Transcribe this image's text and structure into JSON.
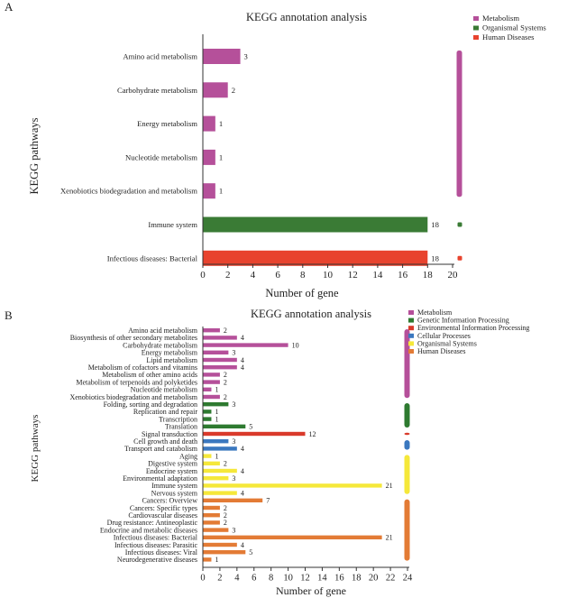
{
  "colors": {
    "metabolism": "#b5509a",
    "organismal": "#3a7b35",
    "human_diseases_a": "#e8432e",
    "genetic": "#2e7a30",
    "environmental": "#d93a2b",
    "cellular": "#3b78bf",
    "organismal_b": "#f5e83a",
    "human_diseases_b": "#e37b35",
    "axis": "#333333"
  },
  "chart_data": [
    {
      "panel_label": "A",
      "type": "bar",
      "orientation": "horizontal",
      "title": "KEGG annotation analysis",
      "xlabel": "Number of gene",
      "ylabel": "KEGG pathways",
      "xlim": [
        0,
        21
      ],
      "xticks": [
        "0",
        "2",
        "4",
        "6",
        "8",
        "10",
        "12",
        "14",
        "16",
        "18",
        "20"
      ],
      "legend_position": "top-right",
      "legend": [
        {
          "name": "Metabolism",
          "color": "#b5509a"
        },
        {
          "name": "Organismal Systems",
          "color": "#3a7b35"
        },
        {
          "name": "Human Diseases",
          "color": "#e8432e"
        }
      ],
      "categories": [
        "Amino acid metabolism",
        "Carbohydrate metabolism",
        "Energy metabolism",
        "Nucleotide metabolism",
        "Xenobiotics biodegradation and metabolism",
        "Immune system",
        "Infectious diseases: Bacterial"
      ],
      "values": [
        3,
        2,
        1,
        1,
        1,
        18,
        18
      ],
      "groups": [
        "Metabolism",
        "Metabolism",
        "Metabolism",
        "Metabolism",
        "Metabolism",
        "Organismal Systems",
        "Human Diseases"
      ]
    },
    {
      "panel_label": "B",
      "type": "bar",
      "orientation": "horizontal",
      "title": "KEGG annotation analysis",
      "xlabel": "Number of gene",
      "ylabel": "KEGG pathways",
      "xlim": [
        0,
        24
      ],
      "xticks": [
        "0",
        "2",
        "4",
        "6",
        "8",
        "10",
        "12",
        "14",
        "16",
        "18",
        "20",
        "22",
        "24"
      ],
      "legend_position": "top-right",
      "legend": [
        {
          "name": "Metabolism",
          "color": "#b5509a"
        },
        {
          "name": "Genetic Information Processing",
          "color": "#2e7a30"
        },
        {
          "name": "Environmental Information Processing",
          "color": "#d93a2b"
        },
        {
          "name": "Cellular Processes",
          "color": "#3b78bf"
        },
        {
          "name": "Organismal Systems",
          "color": "#f5e83a"
        },
        {
          "name": "Human Diseases",
          "color": "#e37b35"
        }
      ],
      "categories": [
        "Amino acid metabolism",
        "Biosynthesis of other secondary metabolites",
        "Carbohydrate metabolism",
        "Energy metabolism",
        "Lipid metabolism",
        "Metabolism of cofactors and vitamins",
        "Metabolism of other amino acids",
        "Metabolism of terpenoids and polyketides",
        "Nucleotide metabolism",
        "Xenobiotics biodegradation and metabolism",
        "Folding, sorting and degradation",
        "Replication and repair",
        "Transcription",
        "Translation",
        "Signal transduction",
        "Cell growth and death",
        "Transport and catabolism",
        "Aging",
        "Digestive system",
        "Endocrine system",
        "Environmental adaptation",
        "Immune system",
        "Nervous system",
        "Cancers: Overview",
        "Cancers: Specific types",
        "Cardiovascular diseases",
        "Drug resistance: Antineoplastic",
        "Endocrine and metabolic diseases",
        "Infectious diseases: Bacterial",
        "Infectious diseases: Parasitic",
        "Infectious diseases: Viral",
        "Neurodegenerative diseases"
      ],
      "values": [
        2,
        4,
        10,
        3,
        4,
        4,
        2,
        2,
        1,
        2,
        3,
        1,
        1,
        5,
        12,
        3,
        4,
        1,
        2,
        4,
        3,
        21,
        4,
        7,
        2,
        2,
        2,
        3,
        21,
        4,
        5,
        1
      ],
      "groups": [
        "Metabolism",
        "Metabolism",
        "Metabolism",
        "Metabolism",
        "Metabolism",
        "Metabolism",
        "Metabolism",
        "Metabolism",
        "Metabolism",
        "Metabolism",
        "Genetic Information Processing",
        "Genetic Information Processing",
        "Genetic Information Processing",
        "Genetic Information Processing",
        "Environmental Information Processing",
        "Cellular Processes",
        "Cellular Processes",
        "Organismal Systems",
        "Organismal Systems",
        "Organismal Systems",
        "Organismal Systems",
        "Organismal Systems",
        "Organismal Systems",
        "Human Diseases",
        "Human Diseases",
        "Human Diseases",
        "Human Diseases",
        "Human Diseases",
        "Human Diseases",
        "Human Diseases",
        "Human Diseases",
        "Human Diseases"
      ]
    }
  ]
}
